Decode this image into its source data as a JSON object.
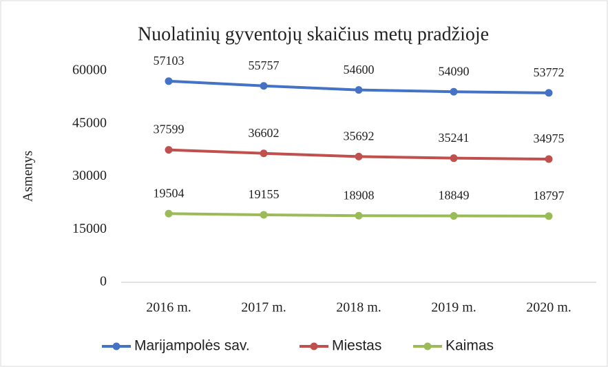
{
  "chart_data": {
    "type": "line",
    "title": "Nuolatinių gyventojų skaičius metų pradžioje",
    "y_label": "Asmenys",
    "categories": [
      "2016 m.",
      "2017 m.",
      "2018 m.",
      "2019 m.",
      "2020 m."
    ],
    "series": [
      {
        "name": "Marijampolės sav.",
        "color": "#4472c4",
        "values": [
          57103,
          55757,
          54600,
          54090,
          53772
        ]
      },
      {
        "name": "Miestas",
        "color": "#c0504d",
        "values": [
          37599,
          36602,
          35692,
          35241,
          34975
        ]
      },
      {
        "name": "Kaimas",
        "color": "#9bbb59",
        "values": [
          19504,
          19155,
          18908,
          18849,
          18797
        ]
      }
    ],
    "ylim": [
      0,
      60000
    ],
    "yticks": [
      0,
      15000,
      30000,
      45000,
      60000
    ],
    "grid": false,
    "legend": "bottom"
  }
}
